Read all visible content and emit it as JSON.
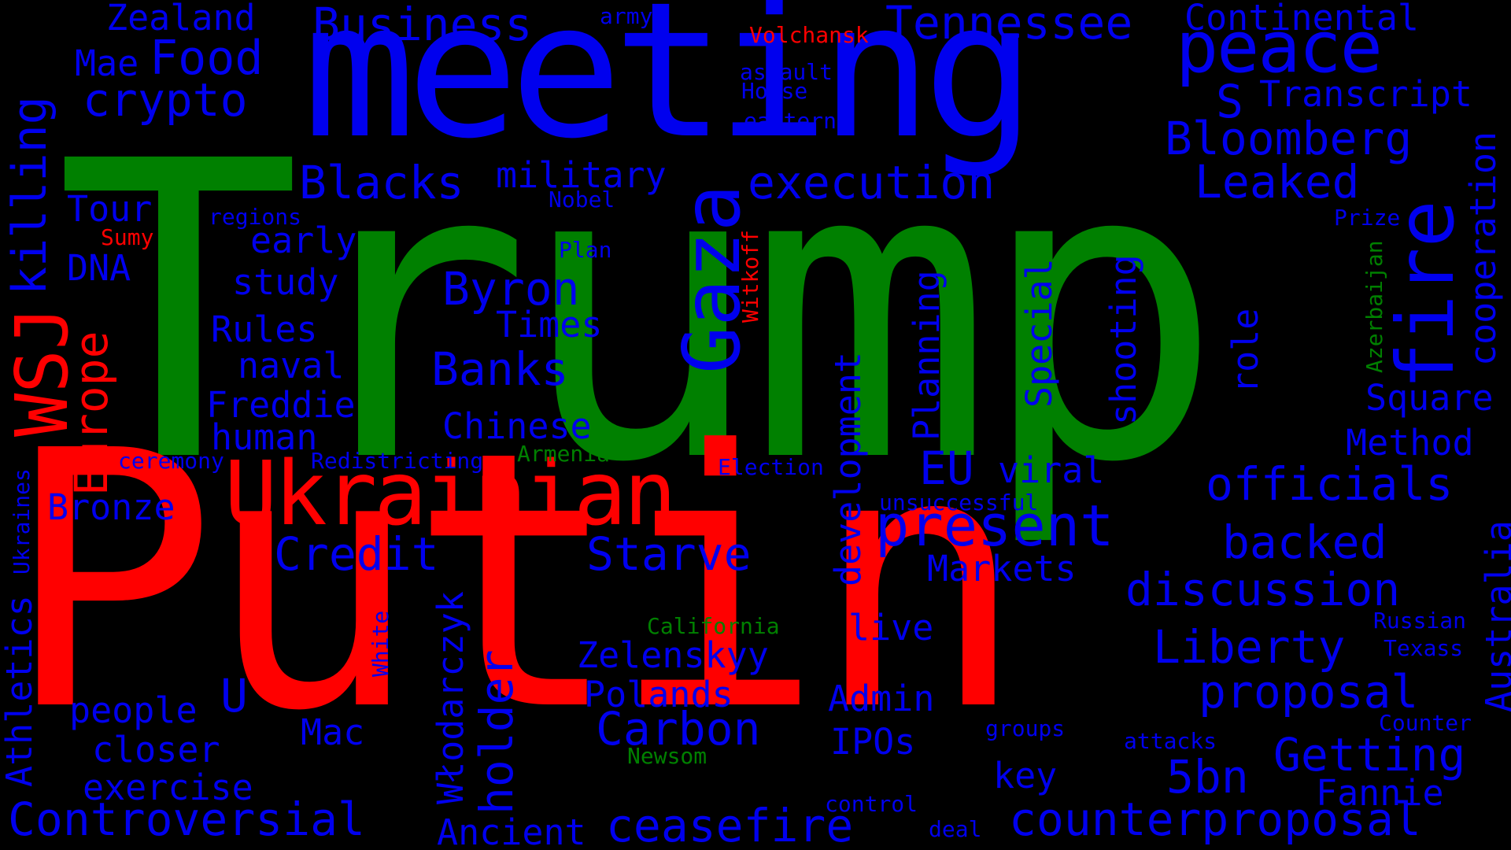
{
  "palette": {
    "background": "#000000",
    "blue": "#0000ee",
    "red": "#ff0000",
    "green": "#008000"
  },
  "words": {
    "trump": "Trump",
    "putin": "Putin",
    "meeting": "meeting",
    "ukrainian": "Ukrainian",
    "peace": "peace",
    "gaza": "Gaza",
    "fire": "fire",
    "wsj": "WSJ",
    "killing": "killing",
    "europe": "Europe",
    "zealand": "Zealand",
    "business": "Business",
    "tennessee": "Tennessee",
    "continental": "Continental",
    "army": "army",
    "volchansk": "Volchansk",
    "mae": "Mae",
    "food": "Food",
    "crypto": "crypto",
    "assault": "assault",
    "house": "House",
    "eastern": "eastern",
    "s": "S",
    "transcript": "Transcript",
    "bloomberg": "Bloomberg",
    "blacks": "Blacks",
    "military": "military",
    "execution": "execution",
    "leaked": "Leaked",
    "tour": "Tour",
    "nobel": "Nobel",
    "regions": "regions",
    "prize": "Prize",
    "cooperation": "cooperation",
    "sumy": "Sumy",
    "early": "early",
    "witkoff": "Witkoff",
    "plan": "Plan",
    "dna": "DNA",
    "study": "study",
    "byron": "Byron",
    "azerbaijan": "Azerbaijan",
    "times": "Times",
    "rules": "Rules",
    "shooting": "shooting",
    "special": "Special",
    "planning": "Planning",
    "role": "role",
    "naval": "naval",
    "banks": "Banks",
    "square": "Square",
    "development": "development",
    "freddie": "Freddie",
    "chinese": "Chinese",
    "human": "human",
    "method": "Method",
    "ceremony": "ceremony",
    "redistricting": "Redistricting",
    "armenia": "Armenia",
    "election": "Election",
    "eu": "EU",
    "viral": "viral",
    "officials": "officials",
    "ukraines": "Ukraines",
    "bronze": "Bronze",
    "unsuccessful": "unsuccessful",
    "present": "present",
    "backed": "backed",
    "australia": "Australia",
    "credit": "Credit",
    "starve": "Starve",
    "markets": "Markets",
    "discussion": "discussion",
    "athletics": "Athletics",
    "wlodarczyk": "Włodarczyk",
    "holder": "holder",
    "white": "White",
    "california": "California",
    "live": "live",
    "russian": "Russian",
    "liberty": "Liberty",
    "texass": "Texass",
    "zelenskyy": "Zelenskyy",
    "polands": "Polands",
    "u": "U",
    "people": "people",
    "admin": "Admin",
    "proposal": "proposal",
    "carbon": "Carbon",
    "mac": "Mac",
    "counter": "Counter",
    "groups": "groups",
    "ipos": "IPOs",
    "attacks": "attacks",
    "getting": "Getting",
    "closer": "closer",
    "newsom": "Newsom",
    "5bn": "5bn",
    "key": "key",
    "exercise": "exercise",
    "fannie": "Fannie",
    "control": "control",
    "controversial": "Controversial",
    "ancient": "Ancient",
    "ceasefire": "ceasefire",
    "deal": "deal",
    "counterproposal": "counterproposal"
  }
}
